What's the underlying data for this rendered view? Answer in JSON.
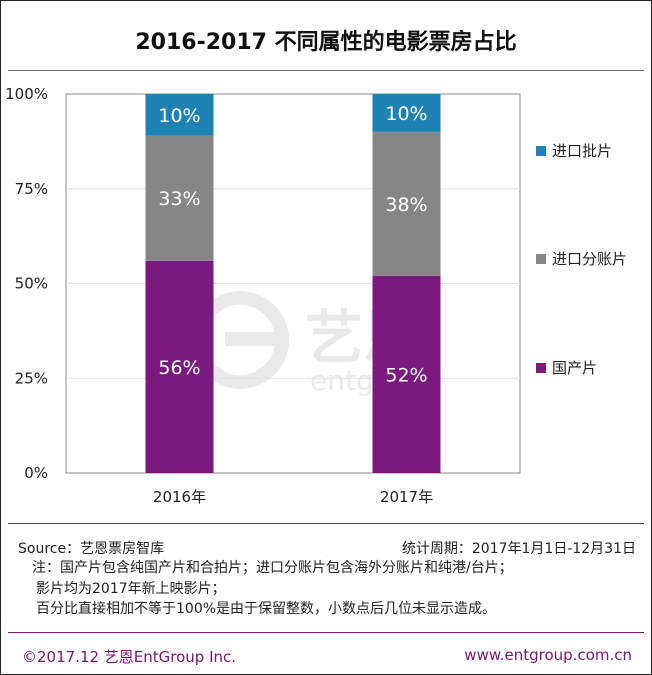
{
  "title": "2016-2017  不同属性的电影票房占比",
  "chart_data": {
    "type": "bar",
    "stacked": true,
    "categories": [
      "2016年",
      "2017年"
    ],
    "series": [
      {
        "name": "国产片",
        "values": [
          56,
          52
        ],
        "labels": [
          "56%",
          "52%"
        ],
        "color": "#7b1a7e"
      },
      {
        "name": "进口分账片",
        "values": [
          33,
          38
        ],
        "labels": [
          "33%",
          "38%"
        ],
        "color": "#868686"
      },
      {
        "name": "进口批片",
        "values": [
          10,
          10
        ],
        "labels": [
          "10%",
          "10%"
        ],
        "color": "#1e82b4"
      }
    ],
    "y_ticks": [
      "0%",
      "25%",
      "50%",
      "75%",
      "100%"
    ],
    "ylim": [
      0,
      100
    ],
    "legend": [
      "进口批片",
      "进口分账片",
      "国产片"
    ],
    "legend_position": "right"
  },
  "source": "Source：艺恩票房智库",
  "period": "统计周期：2017年1月1日-12月31日",
  "notes": [
    "注：国产片包含纯国产片和合拍片；进口分账片包含海外分账片和纯港/台片；",
    "影片均为2017年新上映影片；",
    "百分比直接相加不等于100%是由于保留整数，小数点后几位未显示造成。"
  ],
  "footer_left": "©2017.12  艺恩EntGroup Inc.",
  "footer_right": "www.entgroup.com.cn",
  "watermark": {
    "brand": "艺恩",
    "sub": "entgroup"
  },
  "colors": {
    "accent": "#7a1670",
    "rule": "#7a1670"
  }
}
